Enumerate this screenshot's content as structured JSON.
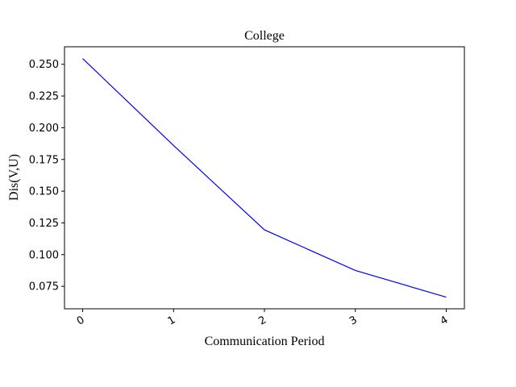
{
  "chart_data": {
    "type": "line",
    "title": "College",
    "xlabel": "Communication Period",
    "ylabel": "Dis(V,U)",
    "x": [
      0,
      1,
      2,
      3,
      4
    ],
    "series": [
      {
        "values": [
          0.2545,
          0.186,
          0.1195,
          0.0875,
          0.0665
        ],
        "color": "#0000ff"
      }
    ],
    "xlim": [
      -0.2,
      4.2
    ],
    "ylim": [
      0.0573,
      0.2638
    ],
    "xticks": [
      "0",
      "1",
      "2",
      "3",
      "4"
    ],
    "yticks": [
      "0.075",
      "0.100",
      "0.125",
      "0.150",
      "0.175",
      "0.200",
      "0.225",
      "0.250"
    ],
    "grid": false
  }
}
